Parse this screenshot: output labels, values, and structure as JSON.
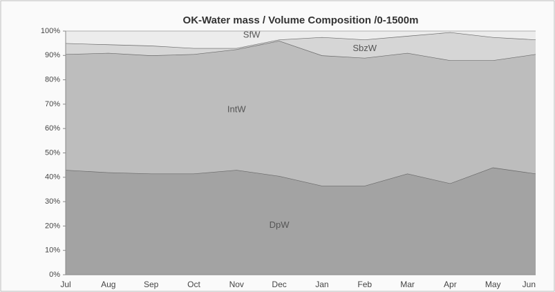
{
  "chart_data": {
    "type": "stacked_area",
    "title": "OK-Water mass / Volume Composition /0-1500m",
    "categories": [
      "Jul",
      "Aug",
      "Sep",
      "Oct",
      "Nov",
      "Dec",
      "Jan",
      "Feb",
      "Mar",
      "Apr",
      "May",
      "Jun"
    ],
    "series": [
      {
        "name": "DpW",
        "color": "#a3a3a3",
        "values": [
          43,
          42,
          41.5,
          41.5,
          43,
          40.5,
          36.5,
          36.5,
          41.5,
          37.5,
          44,
          41.5
        ]
      },
      {
        "name": "IntW",
        "color": "#bdbdbd",
        "values": [
          47.5,
          49,
          48.5,
          49,
          49.5,
          55.5,
          53.5,
          52.5,
          49.5,
          50.5,
          44,
          49
        ]
      },
      {
        "name": "SbzW",
        "color": "#d6d6d6",
        "values": [
          4.5,
          3.5,
          4,
          2.5,
          0.5,
          0.5,
          7.5,
          7.5,
          7,
          11.5,
          9.5,
          6
        ]
      },
      {
        "name": "SfW",
        "color": "#ececec",
        "values": [
          5,
          5.5,
          6,
          7,
          7,
          3.5,
          2.5,
          3.5,
          2,
          0.5,
          2.5,
          3.5
        ]
      }
    ],
    "ylim": [
      0,
      100
    ],
    "yticks": [
      {
        "value": 0,
        "label": "0%"
      },
      {
        "value": 10,
        "label": "10%"
      },
      {
        "value": 20,
        "label": "20%"
      },
      {
        "value": 30,
        "label": "30%"
      },
      {
        "value": 40,
        "label": "40%"
      },
      {
        "value": 50,
        "label": "50%"
      },
      {
        "value": 60,
        "label": "60%"
      },
      {
        "value": 70,
        "label": "70%"
      },
      {
        "value": 80,
        "label": "80%"
      },
      {
        "value": 90,
        "label": "90%"
      },
      {
        "value": 100,
        "label": "100%"
      }
    ]
  }
}
